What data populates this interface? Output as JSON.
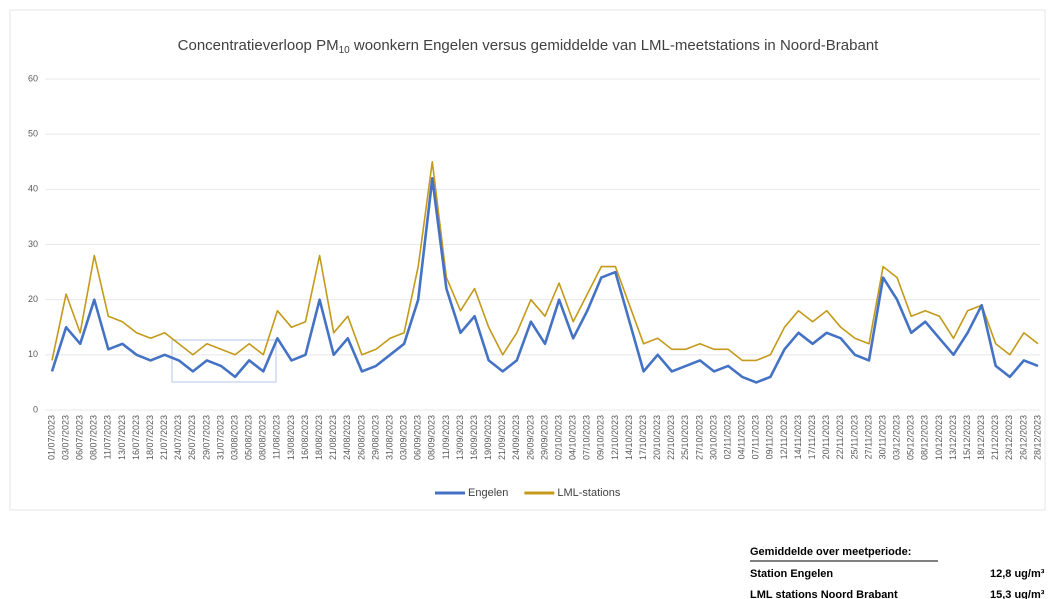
{
  "chart_data": {
    "type": "line",
    "title_parts": [
      "Concentratieverloop PM",
      "10",
      " woonkern Engelen versus gemiddelde van LML-meetstations in Noord-Brabant"
    ],
    "categories": [
      "01/07/2023",
      "03/07/2023",
      "06/07/2023",
      "08/07/2023",
      "11/07/2023",
      "13/07/2023",
      "16/07/2023",
      "18/07/2023",
      "21/07/2023",
      "24/07/2023",
      "26/07/2023",
      "29/07/2023",
      "31/07/2023",
      "03/08/2023",
      "05/08/2023",
      "08/08/2023",
      "11/08/2023",
      "13/08/2023",
      "16/08/2023",
      "18/08/2023",
      "21/08/2023",
      "24/08/2023",
      "26/08/2023",
      "29/08/2023",
      "31/08/2023",
      "03/09/2023",
      "06/09/2023",
      "08/09/2023",
      "11/09/2023",
      "13/09/2023",
      "16/09/2023",
      "19/09/2023",
      "21/09/2023",
      "24/09/2023",
      "26/09/2023",
      "29/09/2023",
      "02/10/2023",
      "04/10/2023",
      "07/10/2023",
      "09/10/2023",
      "12/10/2023",
      "14/10/2023",
      "17/10/2023",
      "20/10/2023",
      "22/10/2023",
      "25/10/2023",
      "27/10/2023",
      "30/10/2023",
      "02/11/2023",
      "04/11/2023",
      "07/11/2023",
      "09/11/2023",
      "12/11/2023",
      "14/11/2023",
      "17/11/2023",
      "20/11/2023",
      "22/11/2023",
      "25/11/2023",
      "27/11/2023",
      "30/11/2023",
      "03/12/2023",
      "05/12/2023",
      "08/12/2023",
      "10/12/2023",
      "13/12/2023",
      "15/12/2023",
      "18/12/2023",
      "21/12/2023",
      "23/12/2023",
      "26/12/2023",
      "28/12/2023"
    ],
    "series": [
      {
        "name": "LML-stations",
        "color": "#c49a1b",
        "values": [
          9,
          21,
          14,
          28,
          17,
          16,
          14,
          13,
          14,
          12,
          10,
          12,
          11,
          10,
          12,
          10,
          18,
          15,
          16,
          28,
          14,
          17,
          10,
          11,
          13,
          14,
          26,
          45,
          24,
          18,
          22,
          15,
          10,
          14,
          20,
          17,
          23,
          16,
          21,
          26,
          26,
          19,
          12,
          13,
          11,
          11,
          12,
          11,
          11,
          9,
          9,
          10,
          15,
          18,
          16,
          18,
          15,
          13,
          12,
          26,
          24,
          17,
          18,
          17,
          13,
          18,
          19,
          12,
          10,
          14,
          12
        ]
      },
      {
        "name": "Engelen",
        "color": "#4472c4",
        "values": [
          7,
          15,
          12,
          20,
          11,
          12,
          10,
          9,
          10,
          9,
          7,
          9,
          8,
          6,
          9,
          7,
          13,
          9,
          10,
          20,
          10,
          13,
          7,
          8,
          10,
          12,
          20,
          42,
          22,
          14,
          17,
          9,
          7,
          9,
          16,
          12,
          20,
          13,
          18,
          24,
          25,
          16,
          7,
          10,
          7,
          8,
          9,
          7,
          8,
          6,
          5,
          6,
          11,
          14,
          12,
          14,
          13,
          10,
          9,
          24,
          20,
          14,
          16,
          13,
          10,
          14,
          19,
          8,
          6,
          9,
          8
        ]
      }
    ],
    "ylim": [
      0,
      60
    ],
    "yticks": [
      0,
      10,
      20,
      30,
      40,
      50,
      60
    ],
    "grid": true
  },
  "summary": {
    "heading": "Gemiddelde over meetperiode:",
    "rows": [
      [
        "Station Engelen",
        "12,8 ug/m³"
      ],
      [
        "LML stations Noord Brabant",
        "15,3 ug/m³"
      ]
    ]
  }
}
